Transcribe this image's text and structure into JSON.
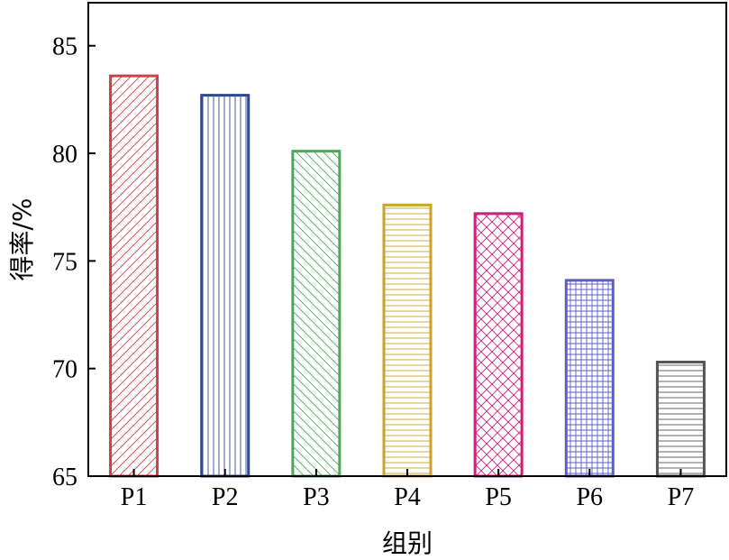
{
  "chart_data": {
    "type": "bar",
    "categories": [
      "P1",
      "P2",
      "P3",
      "P4",
      "P5",
      "P6",
      "P7"
    ],
    "values": [
      83.6,
      82.7,
      80.1,
      77.6,
      77.2,
      74.1,
      70.3
    ],
    "xlabel": "组别",
    "ylabel": "得率/%",
    "ylim": [
      65,
      87
    ],
    "yticks": [
      65,
      70,
      75,
      80,
      85
    ],
    "grid": false,
    "bar_styles": [
      {
        "color": "#c8414b",
        "pattern": "diagonal-up"
      },
      {
        "color": "#2e4a8c",
        "pattern": "vertical"
      },
      {
        "color": "#4aa85a",
        "pattern": "diagonal-down"
      },
      {
        "color": "#c9a227",
        "pattern": "horizontal"
      },
      {
        "color": "#c8207a",
        "pattern": "crosshatch-diagonal"
      },
      {
        "color": "#5a5ec8",
        "pattern": "grid"
      },
      {
        "color": "#555555",
        "pattern": "horizontal"
      }
    ]
  }
}
